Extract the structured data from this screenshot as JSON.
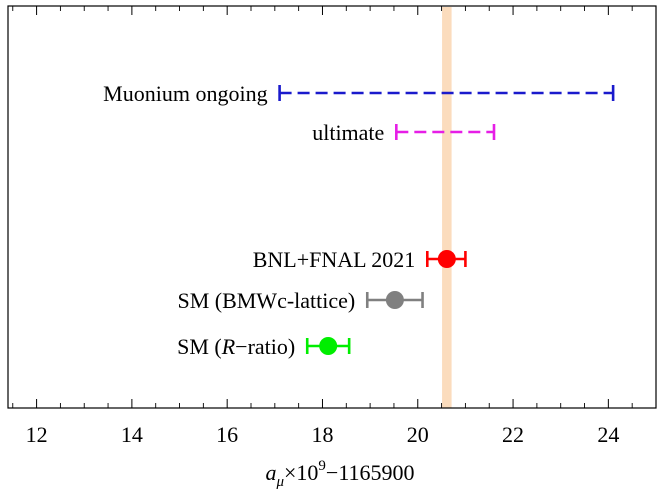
{
  "chart_data": {
    "type": "errorbar",
    "xlim": [
      11.4,
      25.0
    ],
    "x_ticks": [
      12,
      14,
      16,
      18,
      20,
      22,
      24
    ],
    "x_tick_labels": [
      "12",
      "14",
      "16",
      "18",
      "20",
      "22",
      "24"
    ],
    "xlabel": {
      "base": "a",
      "subscript": "μ",
      "mid": "×10",
      "superscript": "9",
      "tail": "−1165900"
    },
    "band": {
      "x0": 20.51,
      "x1": 20.71,
      "color": "#fbdcbd"
    },
    "entries": [
      {
        "label": "Muonium ongoing",
        "lo": 17.1,
        "hi": 24.1,
        "center": null,
        "color": "#1a1acc",
        "style": "dashed",
        "row": 0
      },
      {
        "label": "ultimate",
        "lo": 19.55,
        "hi": 21.6,
        "center": null,
        "color": "#e61ee6",
        "style": "dashed",
        "row": 1
      },
      {
        "label": "BNL+FNAL 2021",
        "lo": 20.2,
        "hi": 21.0,
        "center": 20.61,
        "color": "#ff0000",
        "style": "solid",
        "row": 2
      },
      {
        "label_parts": [
          "SM (BMWc-lattice)"
        ],
        "label": "SM (BMWc-lattice)",
        "lo": 18.94,
        "hi": 20.1,
        "center": 19.52,
        "color": "#808080",
        "style": "solid",
        "row": 3
      },
      {
        "label": "SM (R−ratio)",
        "label_prefix": "SM (",
        "label_italic": "R",
        "label_suffix": "−ratio)",
        "lo": 17.68,
        "hi": 18.56,
        "center": 18.12,
        "color": "#00ee00",
        "style": "solid",
        "row": 4
      }
    ],
    "grid": false,
    "legend": "none"
  }
}
